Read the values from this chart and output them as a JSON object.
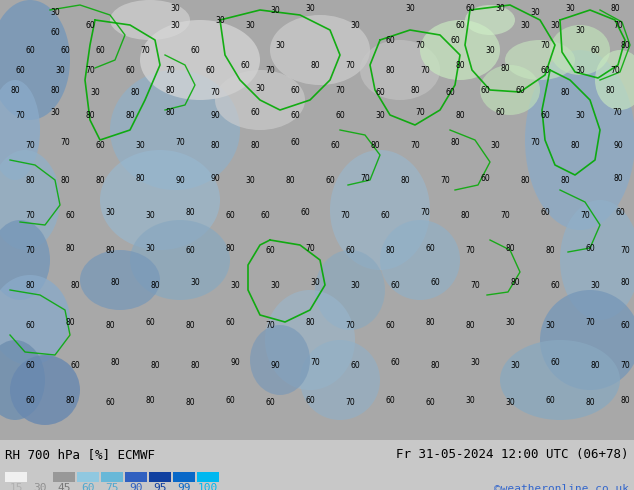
{
  "title_left": "RH 700 hPa [%] ECMWF",
  "title_right": "Fr 31-05-2024 12:00 UTC (06+78)",
  "credit": "©weatheronline.co.uk",
  "legend_values": [
    "15",
    "30",
    "45",
    "60",
    "75",
    "90",
    "95",
    "99",
    "100"
  ],
  "legend_colors": [
    "#f0f0f0",
    "#c8c8c8",
    "#989898",
    "#90c8e0",
    "#68b8d8",
    "#3060c0",
    "#1040a0",
    "#0868c8",
    "#00b8f0"
  ],
  "legend_text_colors": [
    "#b0b0b0",
    "#909090",
    "#787878",
    "#50a8d0",
    "#50a8d0",
    "#3060c0",
    "#1040a0",
    "#0868c8",
    "#00b8f0"
  ],
  "bg_color": "#c8c8c8",
  "figsize": [
    6.34,
    4.9
  ],
  "dpi": 100,
  "font_size_title": 9,
  "font_size_legend": 8,
  "font_size_credit": 8,
  "map_colors": {
    "gray_base": "#a8a8a8",
    "blue_light": "#b8ccd8",
    "blue_mid": "#8aaac8",
    "blue_dark": "#6888b8",
    "green_light": "#c8e8c8",
    "white_area": "#e8e8e8"
  }
}
